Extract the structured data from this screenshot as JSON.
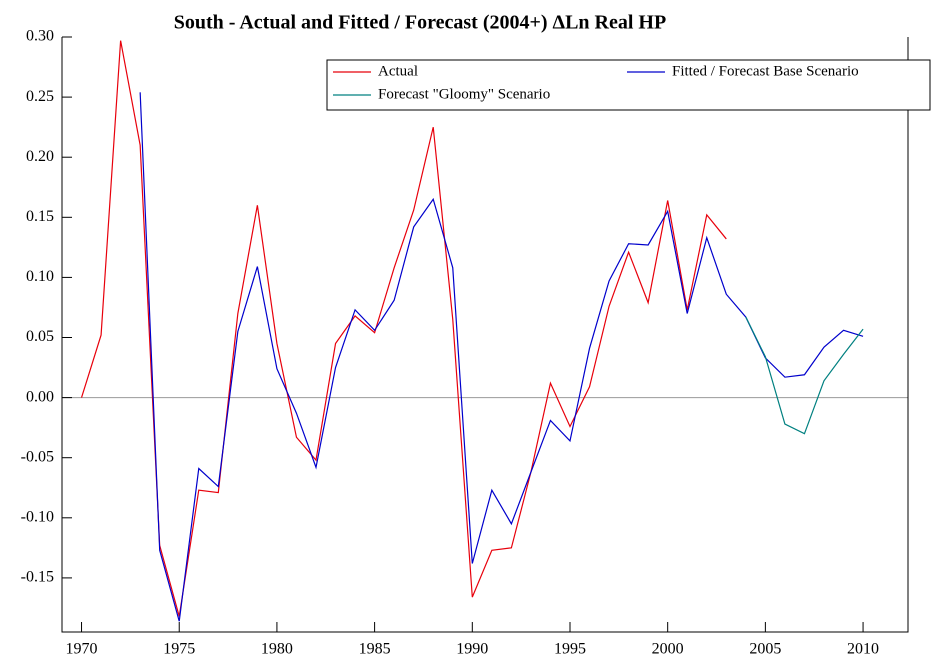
{
  "chart_data": {
    "type": "line",
    "title": "South - Actual and Fitted / Forecast (2004+) ΔLn Real HP",
    "xlim": [
      1969,
      2012.3
    ],
    "ylim": [
      -0.195,
      0.3
    ],
    "xticks": [
      1970,
      1975,
      1980,
      1985,
      1990,
      1995,
      2000,
      2005,
      2010
    ],
    "yticks": [
      {
        "value": 0.3,
        "label": "0.30"
      },
      0.25,
      {
        "value": 0.2,
        "label": "0.20"
      },
      0.15,
      {
        "value": 0.1,
        "label": "0.10"
      },
      0.05,
      {
        "value": 0,
        "label": "0.00"
      },
      -0.05,
      {
        "value": -0.1,
        "label": "-0.10"
      },
      -0.15
    ],
    "hline": 0,
    "series": [
      {
        "name": "Actual",
        "color": "#e8000b",
        "x": [
          1970,
          1971,
          1972,
          1973,
          1974,
          1975,
          1976,
          1977,
          1978,
          1979,
          1980,
          1981,
          1982,
          1983,
          1984,
          1985,
          1986,
          1987,
          1988,
          1989,
          1990,
          1991,
          1992,
          1993,
          1994,
          1995,
          1996,
          1997,
          1998,
          1999,
          2000,
          2001,
          2002,
          2003
        ],
        "values": [
          0.0,
          0.052,
          0.297,
          0.21,
          -0.123,
          -0.182,
          -0.077,
          -0.079,
          0.07,
          0.16,
          0.045,
          -0.033,
          -0.052,
          0.045,
          0.068,
          0.054,
          0.108,
          0.156,
          0.225,
          0.065,
          -0.166,
          -0.127,
          -0.125,
          -0.062,
          0.012,
          -0.024,
          0.009,
          0.076,
          0.121,
          0.079,
          0.164,
          0.073,
          0.152,
          0.132
        ]
      },
      {
        "name": "Fitted / Forecast Base Scenario",
        "color": "#0000cc",
        "x": [
          1973,
          1974,
          1975,
          1976,
          1977,
          1978,
          1979,
          1980,
          1981,
          1982,
          1983,
          1984,
          1985,
          1986,
          1987,
          1988,
          1989,
          1990,
          1991,
          1992,
          1993,
          1994,
          1995,
          1996,
          1997,
          1998,
          1999,
          2000,
          2001,
          2002,
          2003,
          2004,
          2005,
          2006,
          2007,
          2008,
          2009,
          2010
        ],
        "values": [
          0.254,
          -0.127,
          -0.186,
          -0.059,
          -0.074,
          0.055,
          0.109,
          0.024,
          -0.013,
          -0.058,
          0.025,
          0.073,
          0.056,
          0.081,
          0.142,
          0.165,
          0.108,
          -0.138,
          -0.077,
          -0.105,
          -0.062,
          -0.019,
          -0.036,
          0.041,
          0.097,
          0.128,
          0.127,
          0.155,
          0.07,
          0.133,
          0.086,
          0.067,
          0.033,
          0.017,
          0.019,
          0.042,
          0.056,
          0.051
        ]
      },
      {
        "name": "Forecast \"Gloomy\" Scenario",
        "color": "#008080",
        "x": [
          2004,
          2005,
          2006,
          2007,
          2008,
          2009,
          2010
        ],
        "values": [
          0.067,
          0.034,
          -0.022,
          -0.03,
          0.014,
          0.036,
          0.057
        ]
      }
    ]
  }
}
